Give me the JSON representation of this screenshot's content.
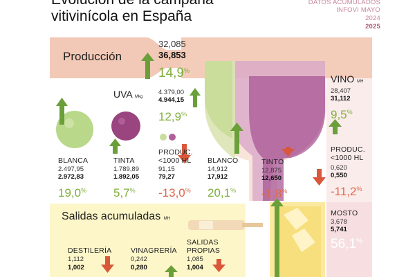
{
  "title": [
    "Evolución de la campaña",
    "vitivinícola en España"
  ],
  "header": {
    "line1": "DATOS ACUMULADOS",
    "line2": "INFOVI MAYO",
    "year_prev": "2024",
    "year_curr": "2025"
  },
  "produccion": {
    "label": "Producción",
    "prev": "32,085",
    "curr": "36,853",
    "pct": "14,9",
    "pct_sign": "%",
    "trend": "up"
  },
  "uva": {
    "label": "UVA",
    "unit": "Mkg",
    "prev": "4.379,00",
    "curr": "4.944,15",
    "pct": "12,9",
    "pct_sign": "%",
    "trend": "up",
    "blanca": {
      "label": "BLANCA",
      "prev": "2.497,95",
      "curr": "2.972,83",
      "pct": "19,0",
      "pct_sign": "%",
      "trend": "up"
    },
    "tinta": {
      "label": "TINTA",
      "prev": "1.789,89",
      "curr": "1.892,05",
      "pct": "5,7",
      "pct_sign": "%",
      "trend": "up"
    },
    "produc": {
      "label1": "PRODUC.",
      "label2": "<1000 HL",
      "prev": "91,15",
      "curr": "79,27",
      "pct": "-13,0",
      "pct_sign": "%",
      "trend": "down"
    }
  },
  "vino": {
    "label": "VINO",
    "unit": "MH",
    "prev": "28,407",
    "curr": "31,112",
    "pct": "9,5",
    "pct_sign": "%",
    "trend": "up",
    "blanco": {
      "label": "BLANCO",
      "prev": "14,912",
      "curr": "17,912",
      "pct": "20,1",
      "pct_sign": "%",
      "trend": "up"
    },
    "tinto": {
      "label": "TINTO",
      "prev": "12,875",
      "curr": "12,650",
      "pct": "-1,8",
      "pct_sign": "%",
      "trend": "down"
    },
    "produc": {
      "label1": "PRODUC.",
      "label2": "<1000 HL",
      "prev": "0,620",
      "curr": "0,550",
      "pct": "-11,2",
      "pct_sign": "%",
      "trend": "down"
    }
  },
  "mosto": {
    "label": "MOSTO",
    "prev": "3,678",
    "curr": "5,741",
    "pct": "56,1",
    "pct_sign": "%",
    "trend": "up"
  },
  "salidas": {
    "label": "Salidas acumuladas",
    "unit": "MH",
    "destileria": {
      "label": "DESTILERÍA",
      "prev": "1,112",
      "curr": "1,002",
      "trend": "down"
    },
    "vinagreria": {
      "label": "VINAGRERÍA",
      "prev": "0,242",
      "curr": "0,280",
      "trend": "up"
    },
    "propias": {
      "label1": "SALIDAS",
      "label2": "PROPIAS",
      "prev": "1,085",
      "curr": "1,004",
      "trend": "down"
    }
  },
  "colors": {
    "up_arrow": "#6a9f3a",
    "down_arrow": "#d9573a",
    "pct_up": "#7fae3c",
    "pct_down": "#e0674a",
    "produccion_band": "#f2c9b6",
    "salidas_panel": "#fdf6c8",
    "grape_white": "#b9d88a",
    "grape_red": "#9a4480",
    "wine_glass": "#c88ab0",
    "mosto_glass": "#f6e27a"
  }
}
